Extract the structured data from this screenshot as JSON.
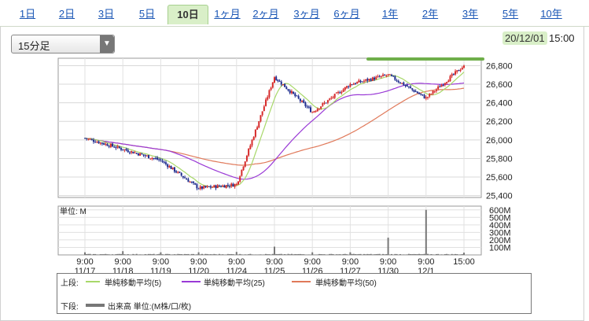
{
  "tabs": [
    {
      "label": "1日",
      "active": false
    },
    {
      "label": "2日",
      "active": false
    },
    {
      "label": "3日",
      "active": false
    },
    {
      "label": "5日",
      "active": false
    },
    {
      "label": "10日",
      "active": true
    },
    {
      "label": "1ヶ月",
      "active": false
    },
    {
      "label": "2ヶ月",
      "active": false
    },
    {
      "label": "3ヶ月",
      "active": false
    },
    {
      "label": "6ヶ月",
      "active": false
    },
    {
      "label": "1年",
      "active": false
    },
    {
      "label": "2年",
      "active": false
    },
    {
      "label": "3年",
      "active": false
    },
    {
      "label": "5年",
      "active": false
    },
    {
      "label": "10年",
      "active": false
    }
  ],
  "interval_select": {
    "value": "15分足"
  },
  "timestamp": {
    "date": "20/12/01",
    "time": "15:00"
  },
  "colors": {
    "up": "#d62a2a",
    "down": "#1f2d8f",
    "ma5": "#a8d86a",
    "ma25": "#9a3ad6",
    "ma50": "#e0795a",
    "volume": "#777777",
    "highlight": "#6fae4a"
  },
  "legend": {
    "upper_label": "上段:",
    "lower_label": "下段:",
    "ma5": "単純移動平均(5)",
    "ma25": "単純移動平均(25)",
    "ma50": "単純移動平均(50)",
    "volume": "出来高 単位:(M株/口/枚)"
  },
  "chart_data": [
    {
      "type": "candlestick",
      "title": "",
      "x_ticks": [
        {
          "time": "9:00",
          "date": "11/17"
        },
        {
          "time": "9:00",
          "date": "11/18"
        },
        {
          "time": "9:00",
          "date": "11/19"
        },
        {
          "time": "9:00",
          "date": "11/20"
        },
        {
          "time": "9:00",
          "date": "11/24"
        },
        {
          "time": "9:00",
          "date": "11/25"
        },
        {
          "time": "9:00",
          "date": "11/26"
        },
        {
          "time": "9:00",
          "date": "11/27"
        },
        {
          "time": "9:00",
          "date": "11/30"
        },
        {
          "time": "9:00",
          "date": "12/1"
        },
        {
          "time": "15:00",
          "date": ""
        }
      ],
      "y_ticks": [
        "26,800",
        "26,600",
        "26,400",
        "26,200",
        "26,000",
        "25,800",
        "25,600",
        "25,400"
      ],
      "ylim": [
        25380,
        26880
      ],
      "close_approx": {
        "x": [
          0,
          1,
          2,
          3,
          4,
          5,
          6,
          7,
          8,
          9,
          10
        ],
        "y": [
          26020,
          25900,
          25780,
          25480,
          25520,
          26680,
          26300,
          26600,
          26700,
          26450,
          26800
        ]
      },
      "series": [
        {
          "name": "単純移動平均(5)"
        },
        {
          "name": "単純移動平均(25)"
        },
        {
          "name": "単純移動平均(50)"
        }
      ],
      "grid": true
    },
    {
      "type": "bar",
      "title": "",
      "unit_label": "単位: M",
      "y_ticks": [
        "600M",
        "500M",
        "400M",
        "300M",
        "200M",
        "100M"
      ],
      "ylim": [
        0,
        650
      ],
      "peaks": [
        {
          "session": "11/18 9:00",
          "value": 50
        },
        {
          "session": "11/24 9:00",
          "value": 40
        },
        {
          "session": "11/25 9:00",
          "value": 110
        },
        {
          "session": "11/30 9:00",
          "value": 230
        },
        {
          "session": "12/1 9:00",
          "value": 600
        }
      ]
    }
  ]
}
